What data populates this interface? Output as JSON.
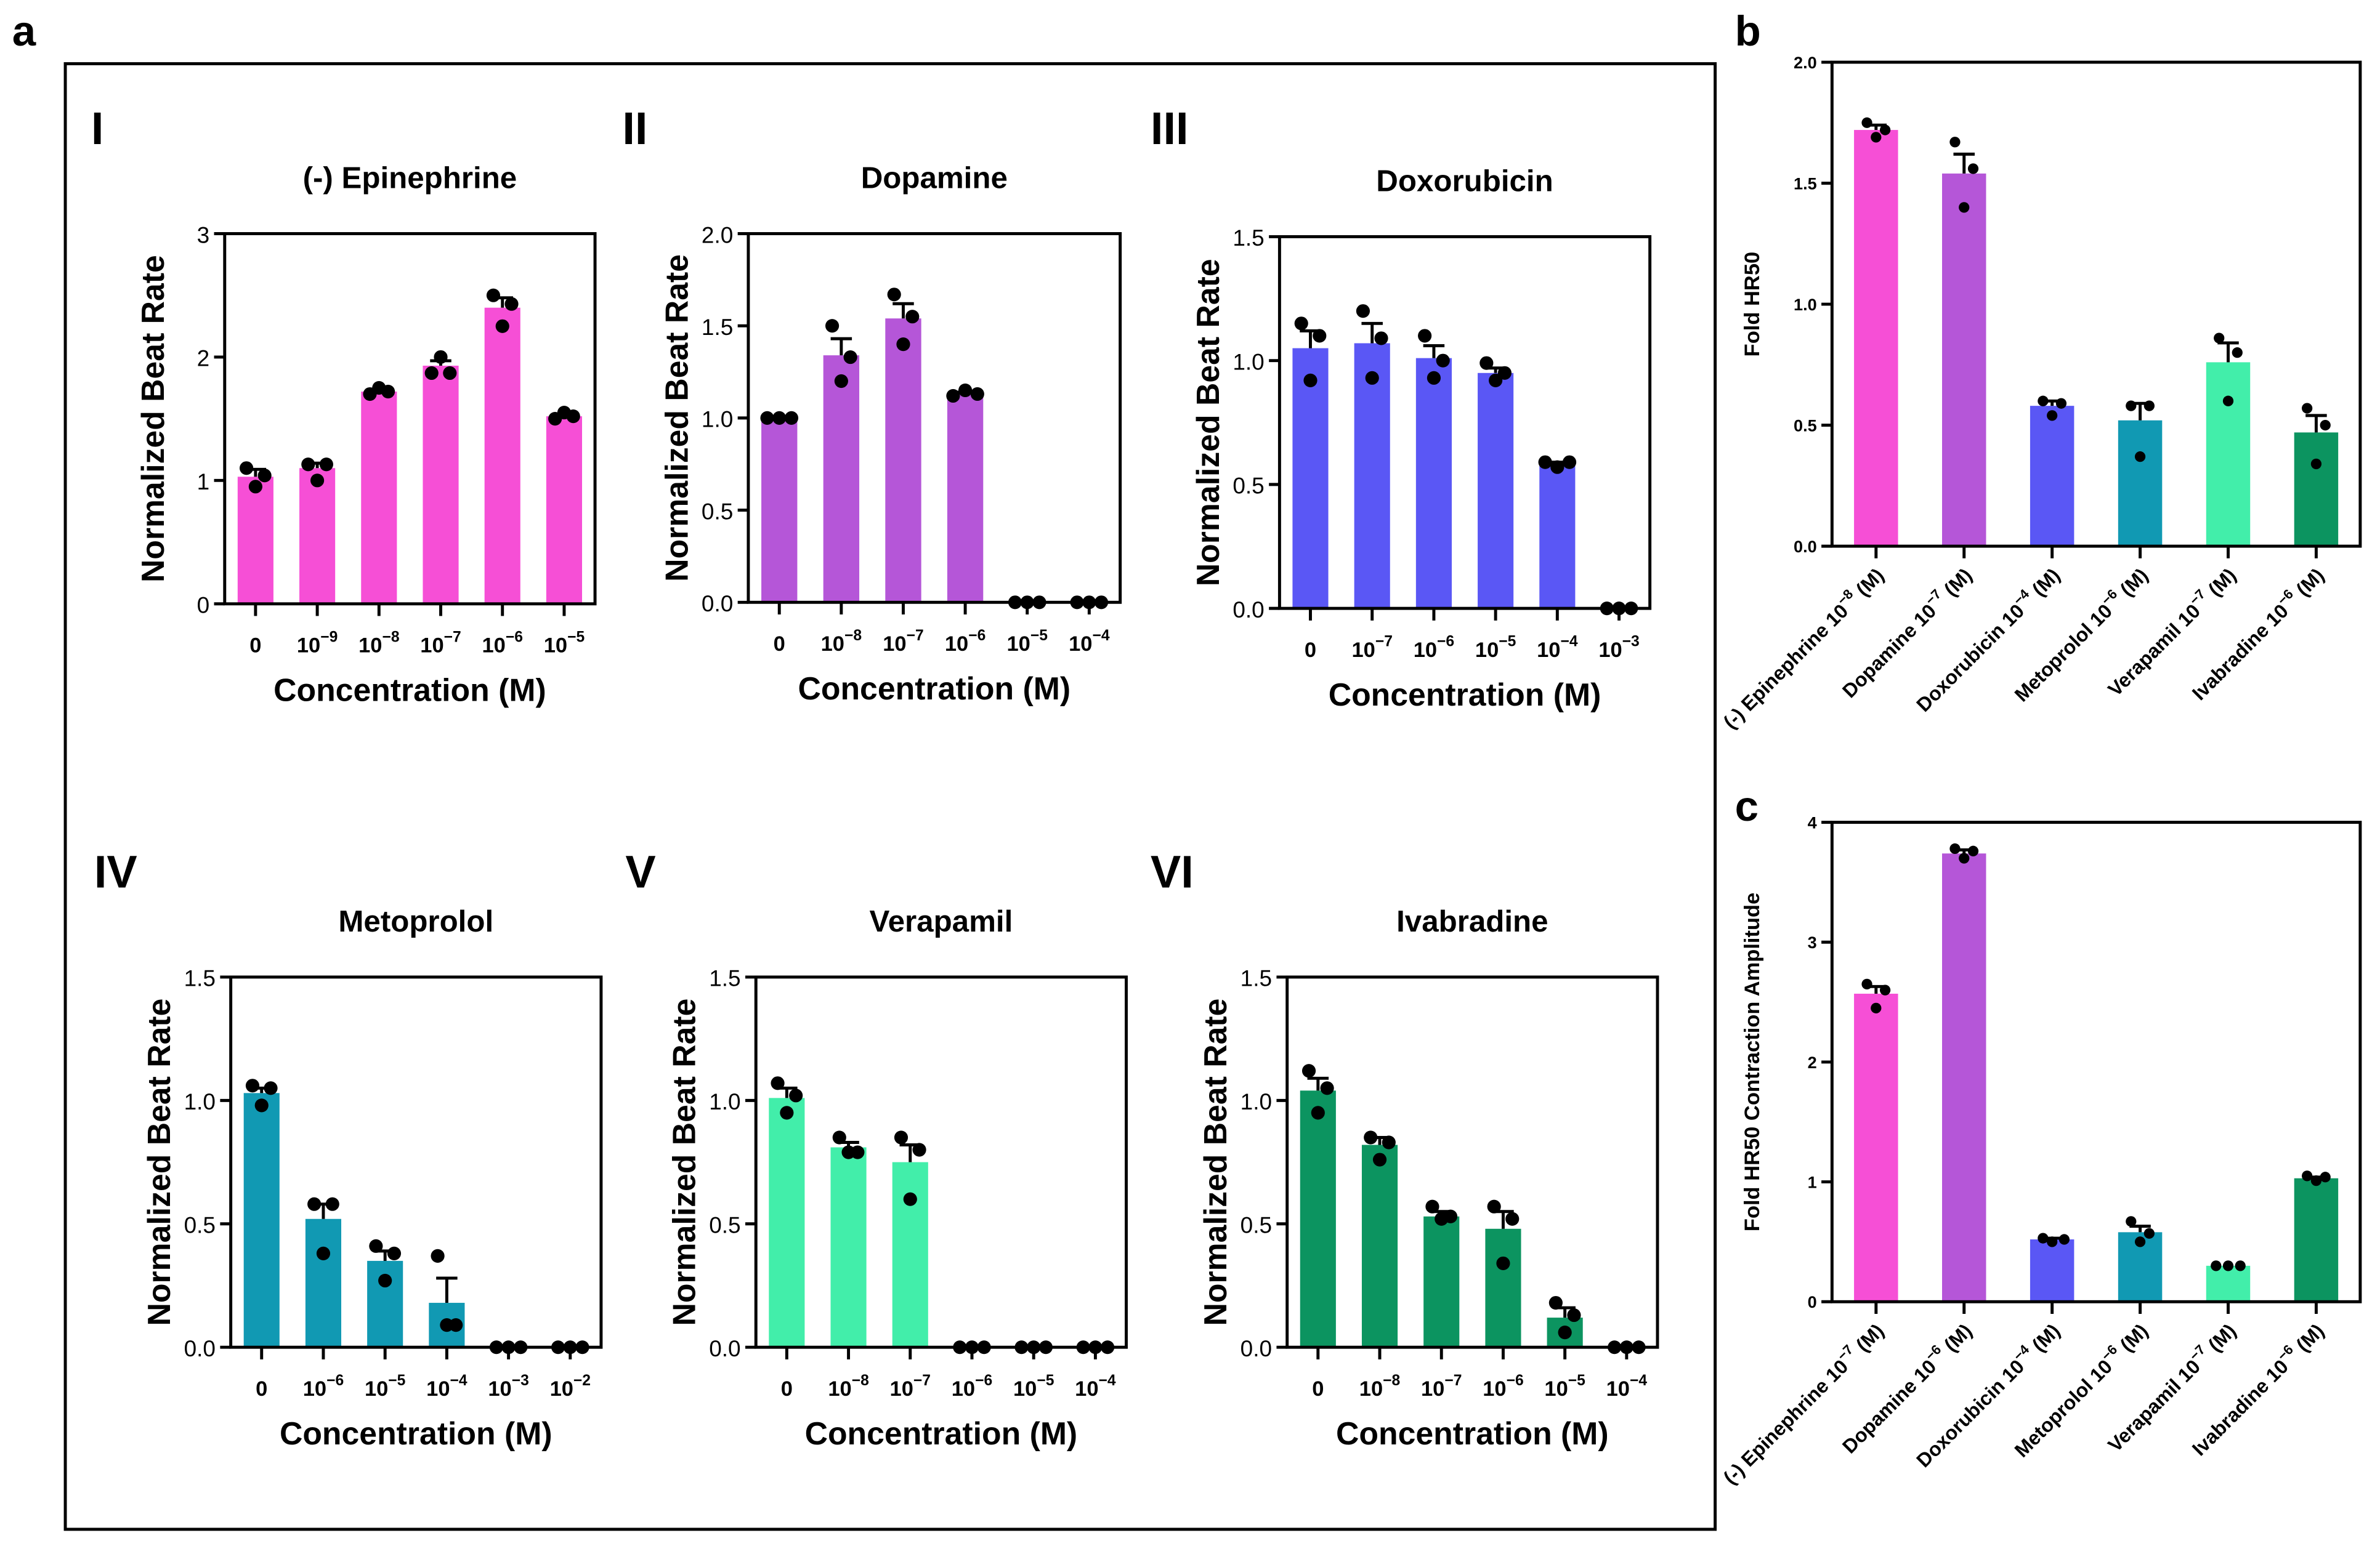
{
  "panel_letters": {
    "a": "a",
    "b": "b",
    "c": "c"
  },
  "chart_data": [
    {
      "id": "I",
      "numeral": "I",
      "type": "bar",
      "title": "(-) Epinephrine",
      "color": "#f64fd6",
      "xlabel": "Concentration (M)",
      "ylabel": "Normalized Beat Rate",
      "ylim": [
        0,
        3
      ],
      "yticks": [
        "0",
        "1",
        "2",
        "3"
      ],
      "ytick_values": [
        0,
        1,
        2,
        3
      ],
      "categories": [
        {
          "base": "0",
          "exp": ""
        },
        {
          "base": "10",
          "exp": "−9"
        },
        {
          "base": "10",
          "exp": "−8"
        },
        {
          "base": "10",
          "exp": "−7"
        },
        {
          "base": "10",
          "exp": "−6"
        },
        {
          "base": "10",
          "exp": "−5"
        }
      ],
      "values": [
        1.03,
        1.1,
        1.72,
        1.93,
        2.4,
        1.52
      ],
      "errors": [
        0.06,
        0.04,
        0.02,
        0.04,
        0.08,
        0.02
      ],
      "points": [
        [
          1.1,
          0.95,
          1.04
        ],
        [
          1.13,
          1.0,
          1.13
        ],
        [
          1.7,
          1.75,
          1.72
        ],
        [
          1.87,
          2.0,
          1.87
        ],
        [
          2.5,
          2.25,
          2.43
        ],
        [
          1.5,
          1.55,
          1.52
        ]
      ]
    },
    {
      "id": "II",
      "numeral": "II",
      "type": "bar",
      "title": "Dopamine",
      "color": "#b556d8",
      "xlabel": "Concentration (M)",
      "ylabel": "Normalized Beat Rate",
      "ylim": [
        0,
        2
      ],
      "yticks": [
        "0.0",
        "0.5",
        "1.0",
        "1.5",
        "2.0"
      ],
      "ytick_values": [
        0,
        0.5,
        1,
        1.5,
        2
      ],
      "categories": [
        {
          "base": "0",
          "exp": ""
        },
        {
          "base": "10",
          "exp": "−8"
        },
        {
          "base": "10",
          "exp": "−7"
        },
        {
          "base": "10",
          "exp": "−6"
        },
        {
          "base": "10",
          "exp": "−5"
        },
        {
          "base": "10",
          "exp": "−4"
        }
      ],
      "values": [
        1.0,
        1.34,
        1.54,
        1.13,
        0,
        0
      ],
      "errors": [
        0,
        0.09,
        0.08,
        0.01,
        0,
        0
      ],
      "points": [
        [
          1,
          1,
          1
        ],
        [
          1.5,
          1.2,
          1.33
        ],
        [
          1.67,
          1.4,
          1.55
        ],
        [
          1.12,
          1.15,
          1.13
        ],
        [
          0,
          0,
          0
        ],
        [
          0,
          0,
          0
        ]
      ]
    },
    {
      "id": "III",
      "numeral": "III",
      "type": "bar",
      "title": "Doxorubicin",
      "color": "#5a57f5",
      "xlabel": "Concentration (M)",
      "ylabel": "Normalized Beat Rate",
      "ylim": [
        0,
        1.5
      ],
      "yticks": [
        "0.0",
        "0.5",
        "1.0",
        "1.5"
      ],
      "ytick_values": [
        0,
        0.5,
        1,
        1.5
      ],
      "categories": [
        {
          "base": "0",
          "exp": ""
        },
        {
          "base": "10",
          "exp": "−7"
        },
        {
          "base": "10",
          "exp": "−6"
        },
        {
          "base": "10",
          "exp": "−5"
        },
        {
          "base": "10",
          "exp": "−4"
        },
        {
          "base": "10",
          "exp": "−3"
        }
      ],
      "values": [
        1.05,
        1.07,
        1.01,
        0.95,
        0.58,
        0
      ],
      "errors": [
        0.07,
        0.08,
        0.05,
        0.02,
        0.01,
        0
      ],
      "points": [
        [
          1.15,
          0.92,
          1.1
        ],
        [
          1.2,
          0.93,
          1.09
        ],
        [
          1.1,
          0.93,
          1.0
        ],
        [
          0.99,
          0.92,
          0.95
        ],
        [
          0.59,
          0.57,
          0.59
        ],
        [
          0,
          0,
          0
        ]
      ]
    },
    {
      "id": "IV",
      "numeral": "IV",
      "type": "bar",
      "title": "Metoprolol",
      "color": "#1199b3",
      "xlabel": "Concentration (M)",
      "ylabel": "Normalized Beat Rate",
      "ylim": [
        0,
        1.5
      ],
      "yticks": [
        "0.0",
        "0.5",
        "1.0",
        "1.5"
      ],
      "ytick_values": [
        0,
        0.5,
        1,
        1.5
      ],
      "categories": [
        {
          "base": "0",
          "exp": ""
        },
        {
          "base": "10",
          "exp": "−6"
        },
        {
          "base": "10",
          "exp": "−5"
        },
        {
          "base": "10",
          "exp": "−4"
        },
        {
          "base": "10",
          "exp": "−3"
        },
        {
          "base": "10",
          "exp": "−2"
        }
      ],
      "values": [
        1.03,
        0.52,
        0.35,
        0.18,
        0,
        0
      ],
      "errors": [
        0.02,
        0.06,
        0.04,
        0.1,
        0,
        0
      ],
      "points": [
        [
          1.06,
          0.98,
          1.05
        ],
        [
          0.58,
          0.38,
          0.58
        ],
        [
          0.41,
          0.27,
          0.38
        ],
        [
          0.37,
          0.09,
          0.09
        ],
        [
          0,
          0,
          0
        ],
        [
          0,
          0,
          0
        ]
      ]
    },
    {
      "id": "V",
      "numeral": "V",
      "type": "bar",
      "title": "Verapamil",
      "color": "#42eeaa",
      "xlabel": "Concentration (M)",
      "ylabel": "Normalized Beat Rate",
      "ylim": [
        0,
        1.5
      ],
      "yticks": [
        "0.0",
        "0.5",
        "1.0",
        "1.5"
      ],
      "ytick_values": [
        0,
        0.5,
        1,
        1.5
      ],
      "categories": [
        {
          "base": "0",
          "exp": ""
        },
        {
          "base": "10",
          "exp": "−8"
        },
        {
          "base": "10",
          "exp": "−7"
        },
        {
          "base": "10",
          "exp": "−6"
        },
        {
          "base": "10",
          "exp": "−5"
        },
        {
          "base": "10",
          "exp": "−4"
        }
      ],
      "values": [
        1.01,
        0.81,
        0.75,
        0,
        0,
        0
      ],
      "errors": [
        0.04,
        0.02,
        0.07,
        0,
        0,
        0
      ],
      "points": [
        [
          1.07,
          0.95,
          1.02
        ],
        [
          0.85,
          0.79,
          0.79
        ],
        [
          0.85,
          0.6,
          0.8
        ],
        [
          0,
          0,
          0
        ],
        [
          0,
          0,
          0
        ],
        [
          0,
          0,
          0
        ]
      ]
    },
    {
      "id": "VI",
      "numeral": "VI",
      "type": "bar",
      "title": "Ivabradine",
      "color": "#0c9460",
      "xlabel": "Concentration (M)",
      "ylabel": "Normalized Beat Rate",
      "ylim": [
        0,
        1.5
      ],
      "yticks": [
        "0.0",
        "0.5",
        "1.0",
        "1.5"
      ],
      "ytick_values": [
        0,
        0.5,
        1,
        1.5
      ],
      "categories": [
        {
          "base": "0",
          "exp": ""
        },
        {
          "base": "10",
          "exp": "−8"
        },
        {
          "base": "10",
          "exp": "−7"
        },
        {
          "base": "10",
          "exp": "−6"
        },
        {
          "base": "10",
          "exp": "−5"
        },
        {
          "base": "10",
          "exp": "−4"
        }
      ],
      "values": [
        1.04,
        0.82,
        0.53,
        0.48,
        0.12,
        0
      ],
      "errors": [
        0.05,
        0.03,
        0.02,
        0.07,
        0.04,
        0
      ],
      "points": [
        [
          1.12,
          0.95,
          1.05
        ],
        [
          0.85,
          0.76,
          0.83
        ],
        [
          0.57,
          0.52,
          0.53
        ],
        [
          0.57,
          0.34,
          0.52
        ],
        [
          0.18,
          0.06,
          0.13
        ],
        [
          0,
          0,
          0
        ]
      ]
    },
    {
      "id": "b",
      "type": "bar",
      "title": "",
      "ylabel": "Fold HR50",
      "xlabel": "",
      "ylim": [
        0,
        2
      ],
      "yticks": [
        "0.0",
        "0.5",
        "1.0",
        "1.5",
        "2.0"
      ],
      "ytick_values": [
        0,
        0.5,
        1,
        1.5,
        2
      ],
      "colors": [
        "#f64fd6",
        "#b556d8",
        "#5a57f5",
        "#1199b3",
        "#42eeaa",
        "#0c9460"
      ],
      "categories": [
        {
          "base": "(-) Epinephrine 10",
          "exp": "−8",
          "suffix": " (M)"
        },
        {
          "base": "Dopamine 10",
          "exp": "−7",
          "suffix": " (M)"
        },
        {
          "base": "Doxorubicin 10",
          "exp": "−4",
          "suffix": " (M)"
        },
        {
          "base": "Metoprolol 10",
          "exp": "−6",
          "suffix": " (M)"
        },
        {
          "base": "Verapamil 10",
          "exp": "−7",
          "suffix": " (M)"
        },
        {
          "base": "Ivabradine 10",
          "exp": "−6",
          "suffix": " (M)"
        }
      ],
      "values": [
        1.72,
        1.54,
        0.58,
        0.52,
        0.76,
        0.47
      ],
      "errors": [
        0.02,
        0.08,
        0.02,
        0.07,
        0.08,
        0.07
      ],
      "points": [
        [
          1.75,
          1.69,
          1.72
        ],
        [
          1.67,
          1.4,
          1.56
        ],
        [
          0.6,
          0.54,
          0.59
        ],
        [
          0.58,
          0.37,
          0.58
        ],
        [
          0.86,
          0.6,
          0.8
        ],
        [
          0.57,
          0.34,
          0.5
        ]
      ]
    },
    {
      "id": "c",
      "type": "bar",
      "title": "",
      "ylabel": "Fold HR50 Contraction Amplitude",
      "xlabel": "",
      "ylim": [
        0,
        4
      ],
      "yticks": [
        "0",
        "1",
        "2",
        "3",
        "4"
      ],
      "ytick_values": [
        0,
        1,
        2,
        3,
        4
      ],
      "colors": [
        "#f64fd6",
        "#b556d8",
        "#5a57f5",
        "#1199b3",
        "#42eeaa",
        "#0c9460"
      ],
      "categories": [
        {
          "base": "(-) Epinephrine 10",
          "exp": "−7",
          "suffix": " (M)"
        },
        {
          "base": "Dopamine 10",
          "exp": "−6",
          "suffix": " (M)"
        },
        {
          "base": "Doxorubicin 10",
          "exp": "−4",
          "suffix": " (M)"
        },
        {
          "base": "Metoprolol 10",
          "exp": "−6",
          "suffix": " (M)"
        },
        {
          "base": "Verapamil 10",
          "exp": "−7",
          "suffix": " (M)"
        },
        {
          "base": "Ivabradine 10",
          "exp": "−6",
          "suffix": " (M)"
        }
      ],
      "values": [
        2.57,
        3.74,
        0.52,
        0.58,
        0.3,
        1.03
      ],
      "errors": [
        0.06,
        0.03,
        0.01,
        0.05,
        0,
        0.01
      ],
      "points": [
        [
          2.65,
          2.45,
          2.6
        ],
        [
          3.78,
          3.7,
          3.76
        ],
        [
          0.53,
          0.5,
          0.52
        ],
        [
          0.67,
          0.5,
          0.57
        ],
        [
          0.3,
          0.3,
          0.3
        ],
        [
          1.05,
          1.01,
          1.04
        ]
      ]
    }
  ]
}
